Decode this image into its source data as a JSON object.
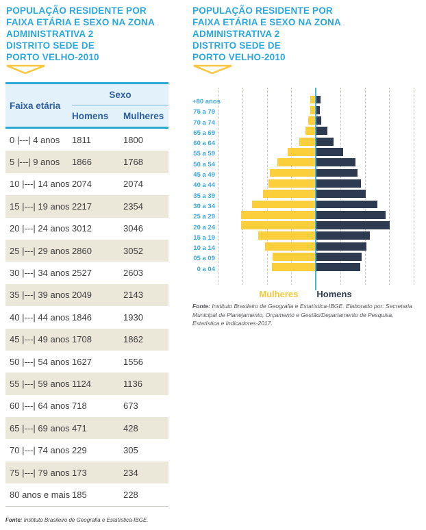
{
  "title": "POPULAÇÃO RESIDENTE POR\nFAIXA ETÁRIA E SEXO NA ZONA\nADMINISTRATIVA 2\nDISTRITO SEDE DE\nPORTO VELHO-2010",
  "table": {
    "group_header": "Sexo",
    "col_age": "Faixa etária",
    "col_men": "Homens",
    "col_women": "Mulheres",
    "rows": [
      [
        "0 |---| 4 anos",
        "1811",
        "1800"
      ],
      [
        "5 |---| 9 anos",
        "1866",
        "1768"
      ],
      [
        "10 |---| 14 anos",
        "2074",
        "2074"
      ],
      [
        "15 |---| 19 anos",
        "2217",
        "2354"
      ],
      [
        "20 |---| 24 anos",
        "3012",
        "3046"
      ],
      [
        "25 |---| 29 anos",
        "2860",
        "3052"
      ],
      [
        "30 |---| 34 anos",
        "2527",
        "2603"
      ],
      [
        "35 |---| 39 anos",
        "2049",
        "2143"
      ],
      [
        "40 |---| 44 anos",
        "1846",
        "1930"
      ],
      [
        "45 |---| 49 anos",
        "1708",
        "1862"
      ],
      [
        "50 |---| 54 anos",
        "1627",
        "1556"
      ],
      [
        "55 |---| 59 anos",
        "1124",
        "1136"
      ],
      [
        "60 |---| 64 anos",
        "718",
        "673"
      ],
      [
        "65 |---| 69 anos",
        "471",
        "428"
      ],
      [
        "70 |---| 74 anos",
        "229",
        "305"
      ],
      [
        "75 |---| 79 anos",
        "173",
        "234"
      ],
      [
        "80 anos e mais",
        "185",
        "228"
      ]
    ]
  },
  "legend": {
    "mulheres": "Mulheres",
    "homens": "Homens"
  },
  "fonte_left": {
    "label": "Fonte:",
    "text": " Instituto Brasileiro de Geografia e Estatística-IBGE."
  },
  "fonte_right": {
    "label": "Fonte:",
    "text": " Instituto Brasileiro de Geografia e Estatística-IBGE. Elaborado por: Secretaria Municipal de Planejamento, Orçamento e Gestão/Departamento de Pesquisa, Estatística e Indicadores-2017."
  },
  "chart_data": {
    "type": "bar",
    "subtype": "population_pyramid",
    "title": "POPULAÇÃO RESIDENTE POR FAIXA ETÁRIA E SEXO NA ZONA ADMINISTRATIVA 2 DISTRITO SEDE DE PORTO VELHO-2010",
    "categories_top_to_bottom": [
      "+80 anos",
      "75 a 79",
      "70 a 74",
      "65 a 69",
      "60 a 64",
      "55 a 59",
      "50 a 54",
      "45 a 49",
      "40 a 44",
      "35 a 39",
      "30 a 34",
      "25 a 29",
      "20 a 24",
      "15 a 19",
      "10 a 14",
      "05 a 09",
      "0 a 04"
    ],
    "series": [
      {
        "name": "Mulheres",
        "side": "left",
        "color": "#FBCF3B",
        "values": [
          228,
          234,
          305,
          428,
          673,
          1136,
          1556,
          1862,
          1930,
          2143,
          2603,
          3052,
          3046,
          2354,
          2074,
          1768,
          1800
        ]
      },
      {
        "name": "Homens",
        "side": "right",
        "color": "#2E3A50",
        "values": [
          185,
          173,
          229,
          471,
          718,
          1124,
          1627,
          1708,
          1846,
          2049,
          2527,
          2860,
          3012,
          2217,
          2074,
          1866,
          1811
        ]
      }
    ],
    "axis_max_each_side": 4000,
    "gridline_step": 1000,
    "grid": "vertical-dotted",
    "legend_position": "bottom"
  },
  "colors": {
    "accent_cyan": "#29A7DE",
    "table_border_cyan": "#2AA9D4",
    "header_bg": "#E3F1FA",
    "header_text": "#2D5F9E",
    "row_stripe": "#EBE7D9",
    "bar_yellow": "#FBCF3B",
    "bar_navy": "#2E3A50",
    "axis_label_blue": "#3BA6DC",
    "center_line_cyan": "#45B4E0",
    "triangle_yellow": "#F7C844"
  }
}
